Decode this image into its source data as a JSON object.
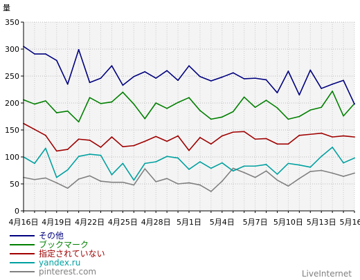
{
  "chart_data": {
    "type": "line",
    "ylabel": "量",
    "ylim": [
      0,
      350
    ],
    "yticks": [
      0,
      50,
      100,
      150,
      200,
      250,
      300,
      350
    ],
    "grid": true,
    "legend_position": "bottom-left",
    "x_count": 31,
    "x_tick_index": [
      0,
      3,
      6,
      9,
      12,
      15,
      18,
      21,
      24,
      27,
      30
    ],
    "x_tick_labels": [
      "4月16日",
      "4月19日",
      "4月22日",
      "4月25日",
      "4月28日",
      "5月1日",
      "5月4日",
      "5月7日",
      "5月10日",
      "5月13日",
      "5月16日"
    ],
    "series": [
      {
        "name": "その他",
        "color": "#00007f",
        "values": [
          305,
          291,
          291,
          279,
          235,
          299,
          238,
          246,
          269,
          233,
          249,
          258,
          246,
          260,
          242,
          269,
          249,
          241,
          248,
          256,
          245,
          246,
          243,
          219,
          259,
          215,
          261,
          227,
          235,
          242,
          198
        ]
      },
      {
        "name": "ブックマーク",
        "color": "#008000",
        "values": [
          206,
          198,
          204,
          182,
          185,
          165,
          210,
          199,
          202,
          220,
          198,
          171,
          200,
          190,
          201,
          210,
          186,
          170,
          174,
          184,
          211,
          192,
          205,
          191,
          170,
          175,
          187,
          192,
          222,
          176,
          199
        ]
      },
      {
        "name": "指定されていない",
        "color": "#a00000",
        "values": [
          162,
          151,
          140,
          111,
          114,
          133,
          131,
          118,
          137,
          119,
          121,
          129,
          138,
          129,
          139,
          112,
          136,
          124,
          139,
          146,
          147,
          133,
          134,
          124,
          124,
          140,
          142,
          144,
          137,
          139,
          137
        ]
      },
      {
        "name": "yandex.ru",
        "color": "#00a0a0",
        "values": [
          100,
          88,
          116,
          62,
          76,
          101,
          105,
          103,
          67,
          88,
          57,
          88,
          91,
          101,
          98,
          77,
          91,
          79,
          89,
          74,
          83,
          83,
          86,
          68,
          88,
          85,
          81,
          101,
          118,
          89,
          98
        ]
      },
      {
        "name": "pinterest.com",
        "color": "#808080",
        "values": [
          62,
          58,
          61,
          52,
          42,
          59,
          65,
          55,
          53,
          53,
          48,
          78,
          54,
          60,
          50,
          52,
          48,
          36,
          55,
          79,
          71,
          62,
          74,
          57,
          46,
          60,
          73,
          75,
          70,
          64,
          70
        ]
      }
    ]
  },
  "brand": "LiveInternet"
}
